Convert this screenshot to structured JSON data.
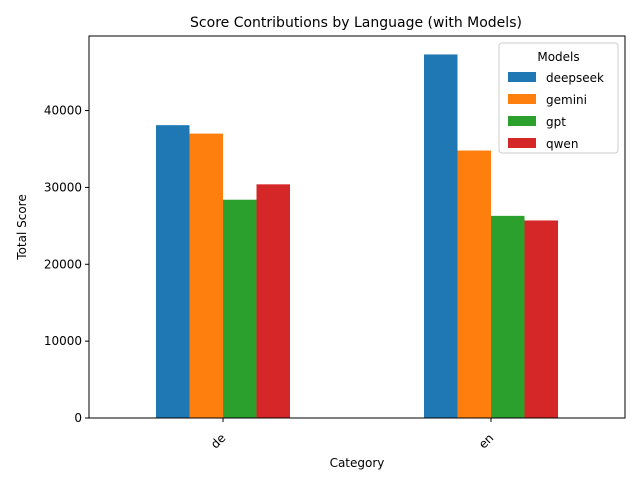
{
  "chart_data": {
    "type": "bar",
    "title": "Score Contributions by Language (with Models)",
    "xlabel": "Category",
    "ylabel": "Total Score",
    "categories": [
      "de",
      "en"
    ],
    "series": [
      {
        "name": "deepseek",
        "color": "#1f77b4",
        "values": [
          38100,
          47300
        ]
      },
      {
        "name": "gemini",
        "color": "#ff7f0e",
        "values": [
          37000,
          34800
        ]
      },
      {
        "name": "gpt",
        "color": "#2ca02c",
        "values": [
          28400,
          26300
        ]
      },
      {
        "name": "qwen",
        "color": "#d62728",
        "values": [
          30400,
          25700
        ]
      }
    ],
    "ylim": [
      0,
      49700
    ],
    "yticks": [
      0,
      10000,
      20000,
      30000,
      40000
    ],
    "legend": {
      "title": "Models",
      "placement": "top-right"
    },
    "grid": false
  }
}
